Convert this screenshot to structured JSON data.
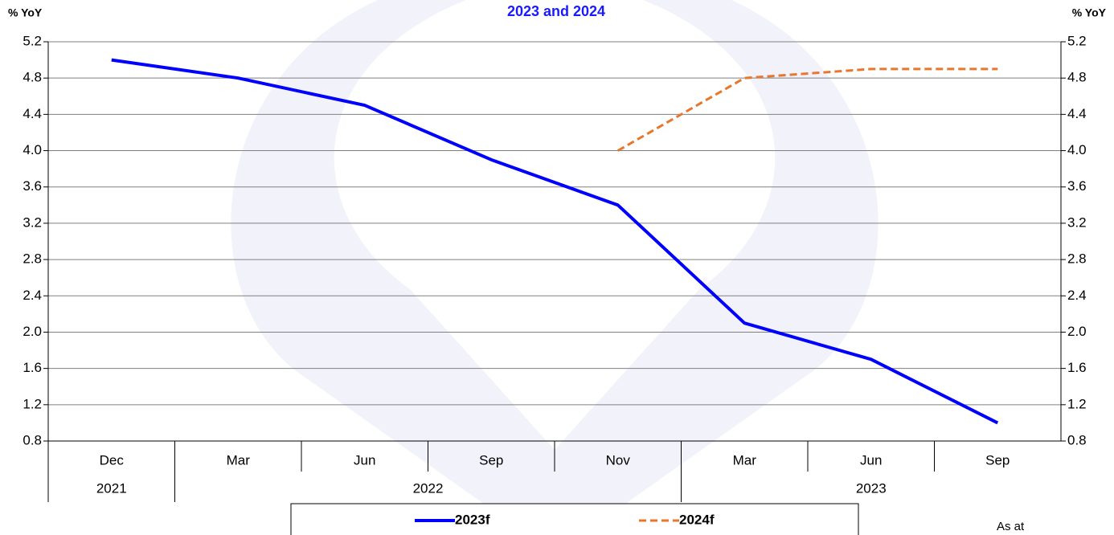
{
  "chart_data": {
    "type": "line",
    "title": "2023 and 2024",
    "y_label": "% YoY",
    "y2_label": "% YoY",
    "categories": [
      "Dec",
      "Mar",
      "Jun",
      "Sep",
      "Nov",
      "Mar",
      "Jun",
      "Sep"
    ],
    "x_groups": [
      {
        "label": "2021",
        "count": 1
      },
      {
        "label": "2022",
        "count": 4
      },
      {
        "label": "2023",
        "count": 3
      }
    ],
    "series": [
      {
        "name": "2023f",
        "color": "#0000ff",
        "dashed": false,
        "values": [
          5.0,
          4.8,
          4.5,
          3.9,
          3.4,
          2.1,
          1.7,
          1.0
        ]
      },
      {
        "name": "2024f",
        "color": "#e8762c",
        "dashed": true,
        "values": [
          null,
          null,
          null,
          null,
          4.0,
          4.8,
          4.9,
          4.9
        ]
      }
    ],
    "ylim": [
      0.8,
      5.2
    ],
    "yticks": [
      0.8,
      1.2,
      1.6,
      {
        "value": 2,
        "label": "2.0"
      },
      2.4,
      2.8,
      3.2,
      3.6,
      {
        "value": 4,
        "label": "4.0"
      },
      4.4,
      4.8,
      5.2
    ],
    "y2lim": [
      0.8,
      5.2
    ],
    "y2ticks": [
      0.8,
      1.2,
      1.6,
      {
        "value": 2,
        "label": "2.0"
      },
      2.4,
      2.8,
      3.2,
      3.6,
      {
        "value": 4,
        "label": "4.0"
      },
      4.4,
      4.8,
      5.2
    ],
    "grid": true,
    "note": "As at"
  }
}
